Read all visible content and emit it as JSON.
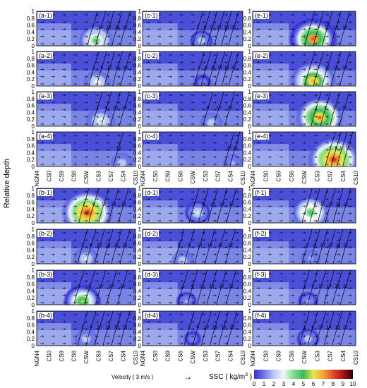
{
  "chart_data": {
    "type": "heatmap",
    "ylabel": "Relative depth",
    "y_ticks": [
      "0",
      "0.2",
      "0.4",
      "0.6",
      "0.8",
      "1"
    ],
    "y_range": [
      0,
      1
    ],
    "stations": [
      "NGN4",
      "CS0",
      "CS9",
      "CS6",
      "CSW",
      "CS3",
      "CS7",
      "CS4",
      "CS10"
    ],
    "colorbar": {
      "label": "SSC ( kg/m",
      "label_sup": "3",
      "label_close": " )",
      "ticks": [
        "0",
        "1",
        "2",
        "3",
        "4",
        "5",
        "6",
        "7",
        "8",
        "9",
        "10"
      ],
      "range": [
        0,
        10
      ],
      "colors": [
        "#3a2fd6",
        "#6a78e8",
        "#b9c8f4",
        "#f2f5f8",
        "#7fdc8a",
        "#3cb85c",
        "#e9e64a",
        "#f4a23a",
        "#e4462a",
        "#b01010",
        "#200000"
      ]
    },
    "velocity_legend": {
      "label": "Velocity ( 3 m/s )",
      "arrow": "→"
    },
    "panels": [
      {
        "label": "(a-1)",
        "hotspot": {
          "station": 4.8,
          "depth": 0.15,
          "ssc": 4.5
        },
        "contour_labels": [
          "2",
          "10",
          "14",
          "18",
          "22"
        ]
      },
      {
        "label": "(a-2)",
        "hotspot": {
          "station": 4.9,
          "depth": 0.1,
          "ssc": 3.0
        },
        "contour_labels": [
          "2",
          "6",
          "10",
          "14",
          "18"
        ]
      },
      {
        "label": "(a-3)",
        "hotspot": {
          "station": 5.2,
          "depth": 0.15,
          "ssc": 3.5
        },
        "contour_labels": [
          "2",
          "6",
          "10",
          "14"
        ]
      },
      {
        "label": "(a-4)",
        "hotspot": {
          "station": 6.9,
          "depth": 0.1,
          "ssc": 2.0
        },
        "contour_labels": [
          "10"
        ]
      },
      {
        "label": "(b-1)",
        "hotspot": {
          "station": 4.1,
          "depth": 0.3,
          "ssc": 8.5
        },
        "contour_labels": [
          "2",
          "6",
          "10",
          "14",
          "18"
        ]
      },
      {
        "label": "(b-2)",
        "hotspot": {
          "station": 4.0,
          "depth": 0.15,
          "ssc": 2.5
        },
        "contour_labels": [
          "2",
          "6",
          "10",
          "14",
          "18",
          "22"
        ]
      },
      {
        "label": "(b-3)",
        "hotspot": {
          "station": 3.7,
          "depth": 0.1,
          "ssc": 5.5
        },
        "contour_labels": [
          "2",
          "6",
          "10",
          "14",
          "18"
        ]
      },
      {
        "label": "(b-4)",
        "hotspot": {
          "station": 4.0,
          "depth": 0.2,
          "ssc": 2.0
        },
        "contour_labels": [
          "2",
          "6",
          "10",
          "14",
          "18",
          "22"
        ]
      },
      {
        "label": "(c-1)",
        "hotspot": {
          "station": 4.7,
          "depth": 0.15,
          "ssc": 2.2
        },
        "contour_labels": [
          "2",
          "6",
          "10",
          "14",
          "18",
          "22"
        ]
      },
      {
        "label": "(c-2)",
        "hotspot": {
          "station": 4.8,
          "depth": 0.1,
          "ssc": 1.3
        },
        "contour_labels": [
          "2",
          "6",
          "10",
          "14",
          "18",
          "22"
        ]
      },
      {
        "label": "(c-3)",
        "hotspot": {
          "station": 5.5,
          "depth": 0.1,
          "ssc": 2.0
        },
        "contour_labels": [
          "6",
          "10",
          "14"
        ]
      },
      {
        "label": "(c-4)",
        "hotspot": {
          "station": 7.2,
          "depth": 0.1,
          "ssc": 1.5
        },
        "contour_labels": [
          "10",
          "14"
        ]
      },
      {
        "label": "(d-1)",
        "hotspot": {
          "station": 4.4,
          "depth": 0.3,
          "ssc": 2.8
        },
        "contour_labels": [
          "2",
          "6",
          "10",
          "14",
          "18"
        ]
      },
      {
        "label": "(d-2)",
        "hotspot": {
          "station": 3.2,
          "depth": 0.1,
          "ssc": 2.0
        },
        "contour_labels": [
          "2",
          "6",
          "10",
          "14",
          "18",
          "22"
        ]
      },
      {
        "label": "(d-3)",
        "hotspot": {
          "station": 3.5,
          "depth": 0.1,
          "ssc": 1.8
        },
        "contour_labels": [
          "2",
          "6",
          "10",
          "14",
          "18",
          "22"
        ]
      },
      {
        "label": "(d-4)",
        "hotspot": {
          "station": 4.0,
          "depth": 0.2,
          "ssc": 1.2
        },
        "contour_labels": [
          "2",
          "6",
          "10",
          "14",
          "18",
          "22"
        ]
      },
      {
        "label": "(e-1)",
        "hotspot": {
          "station": 4.7,
          "depth": 0.2,
          "ssc": 8.0
        },
        "contour_labels": [
          "2",
          "6",
          "10",
          "14",
          "18"
        ]
      },
      {
        "label": "(e-2)",
        "hotspot": {
          "station": 4.7,
          "depth": 0.15,
          "ssc": 7.0
        },
        "contour_labels": [
          "2",
          "6",
          "10",
          "14",
          "18"
        ]
      },
      {
        "label": "(e-3)",
        "hotspot": {
          "station": 5.2,
          "depth": 0.25,
          "ssc": 7.5
        },
        "contour_labels": [
          "2",
          "6",
          "10",
          "14"
        ]
      },
      {
        "label": "(e-4)",
        "hotspot": {
          "station": 6.3,
          "depth": 0.2,
          "ssc": 8.5
        },
        "contour_labels": [
          "2",
          "6",
          "10",
          "14"
        ]
      },
      {
        "label": "(f-1)",
        "hotspot": {
          "station": 4.5,
          "depth": 0.3,
          "ssc": 5.0
        },
        "contour_labels": [
          "2",
          "6",
          "10",
          "14",
          "18",
          "22"
        ]
      },
      {
        "label": "(f-2)",
        "hotspot": {
          "station": 4.5,
          "depth": 0.15,
          "ssc": 1.5
        },
        "contour_labels": [
          "2",
          "6",
          "10",
          "14",
          "18",
          "22"
        ]
      },
      {
        "label": "(f-3)",
        "hotspot": {
          "station": 4.3,
          "depth": 0.1,
          "ssc": 1.8
        },
        "contour_labels": [
          "2",
          "6",
          "10",
          "14",
          "18",
          "22"
        ]
      },
      {
        "label": "(f-4)",
        "hotspot": {
          "station": 4.3,
          "depth": 0.2,
          "ssc": 2.2
        },
        "contour_labels": [
          "2",
          "6",
          "10",
          "14",
          "18",
          "22"
        ]
      }
    ]
  }
}
